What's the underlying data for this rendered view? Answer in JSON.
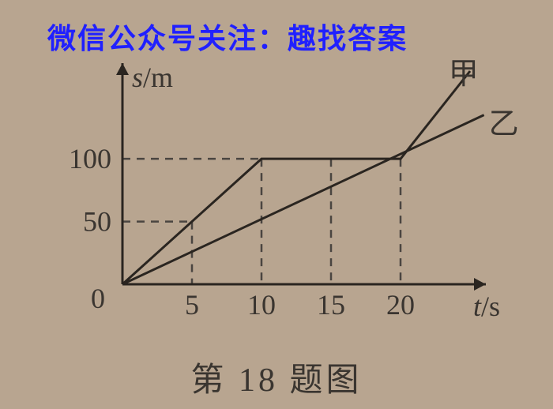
{
  "watermark": "微信公众号关注：趣找答案",
  "caption": "第 18 题图",
  "chart": {
    "type": "line",
    "background_color": "#b8a590",
    "axis_color": "#2a2520",
    "axis_width": 3,
    "dash_color": "#4a4540",
    "dash_width": 2.5,
    "x_axis": {
      "label_var": "t",
      "label_unit": "/s",
      "ticks": [
        5,
        10,
        15,
        20
      ],
      "range": [
        0,
        25
      ]
    },
    "y_axis": {
      "label_var": "s",
      "label_unit": "/m",
      "ticks": [
        0,
        50,
        100
      ],
      "range": [
        0,
        170
      ]
    },
    "series": [
      {
        "name": "甲",
        "label": "甲",
        "color": "#2a2520",
        "width": 3,
        "points": [
          [
            0,
            0
          ],
          [
            10,
            100
          ],
          [
            20,
            100
          ],
          [
            25,
            170
          ]
        ]
      },
      {
        "name": "乙",
        "label": "乙",
        "color": "#2a2520",
        "width": 3,
        "points": [
          [
            0,
            0
          ],
          [
            26,
            135
          ]
        ]
      }
    ],
    "dash_lines": [
      {
        "from": [
          0,
          50
        ],
        "to": [
          5,
          50
        ]
      },
      {
        "from": [
          5,
          50
        ],
        "to": [
          5,
          0
        ]
      },
      {
        "from": [
          0,
          100
        ],
        "to": [
          10,
          100
        ]
      },
      {
        "from": [
          10,
          100
        ],
        "to": [
          10,
          0
        ]
      },
      {
        "from": [
          15,
          100
        ],
        "to": [
          15,
          0
        ]
      },
      {
        "from": [
          20,
          100
        ],
        "to": [
          20,
          0
        ]
      }
    ],
    "origin_label": "0"
  }
}
